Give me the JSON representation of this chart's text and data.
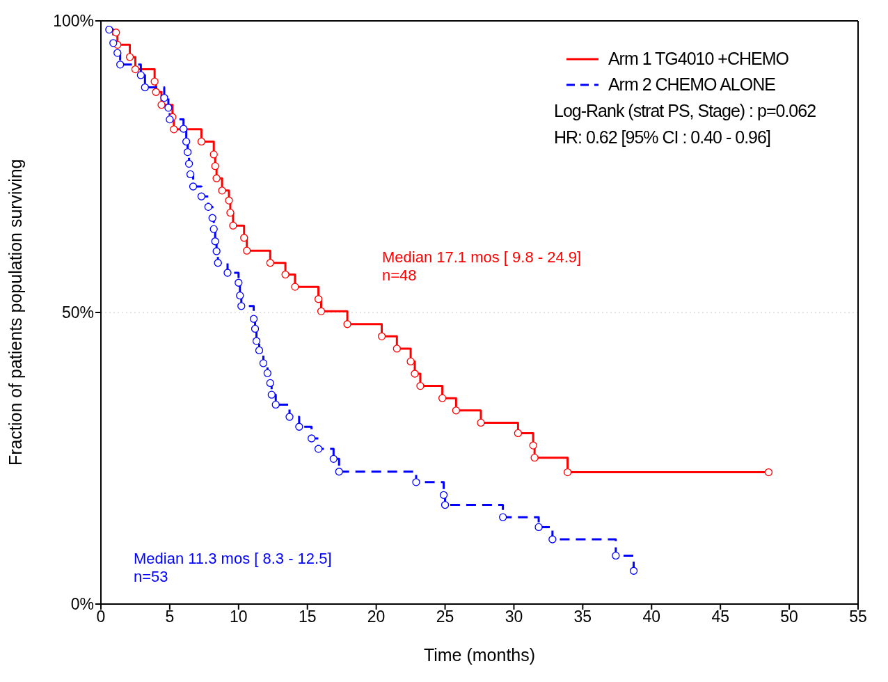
{
  "chart_data": {
    "type": "step",
    "xlabel": "Time (months)",
    "ylabel": "Fraction of patients population surviving",
    "xlim": [
      0,
      55
    ],
    "xticks": [
      0,
      5,
      10,
      15,
      20,
      25,
      30,
      35,
      40,
      45,
      50,
      55
    ],
    "ylim": [
      0,
      100
    ],
    "yticks": [
      {
        "value": 0,
        "label": "0%"
      },
      {
        "value": 50,
        "label": "50%"
      },
      {
        "value": 100,
        "label": "100%"
      }
    ],
    "legend": "top right",
    "marker": "circle",
    "ref_lines": [
      {
        "axis": "y",
        "value": 50,
        "label": null,
        "color": "#c8c8c8",
        "line_style": "dotted"
      }
    ],
    "series": [
      {
        "name": "Arm 1 TG4010 +CHEMO",
        "color": "#ff0000",
        "line_style": "solid",
        "x": [
          1.1,
          1.2,
          2.1,
          2.5,
          3.9,
          4.0,
          4.4,
          5.2,
          5.3,
          7.3,
          8.2,
          8.3,
          8.4,
          8.8,
          9.3,
          9.4,
          9.6,
          10.4,
          10.6,
          12.3,
          13.4,
          14.1,
          15.8,
          16.0,
          17.9,
          20.4,
          21.5,
          22.5,
          22.8,
          23.2,
          24.8,
          25.8,
          27.6,
          30.3,
          31.4,
          31.5,
          33.9,
          48.5
        ],
        "values": [
          98.0,
          95.9,
          93.8,
          91.7,
          89.6,
          87.8,
          85.6,
          83.5,
          81.4,
          79.3,
          77.1,
          75.1,
          73.0,
          70.9,
          69.2,
          67.1,
          64.9,
          62.8,
          60.6,
          58.5,
          56.5,
          54.4,
          52.3,
          50.2,
          48.0,
          45.9,
          43.8,
          41.6,
          39.5,
          37.4,
          35.3,
          33.2,
          31.1,
          29.3,
          27.2,
          25.1,
          22.6,
          22.6
        ]
      },
      {
        "name": "Arm 2 CHEMO ALONE",
        "color": "#0000ff",
        "line_style": "dashed",
        "x": [
          0.6,
          0.9,
          1.2,
          1.4,
          2.9,
          3.2,
          4.6,
          4.9,
          5.0,
          6.0,
          6.2,
          6.3,
          6.4,
          6.5,
          6.7,
          7.3,
          7.8,
          8.1,
          8.2,
          8.3,
          8.4,
          8.5,
          9.2,
          10.0,
          10.1,
          10.2,
          11.1,
          11.2,
          11.3,
          11.5,
          11.8,
          12.1,
          12.3,
          12.4,
          12.7,
          13.7,
          14.4,
          15.3,
          15.8,
          16.9,
          17.3,
          22.9,
          24.9,
          25.0,
          29.2,
          31.8,
          32.8,
          37.4,
          38.7
        ],
        "values": [
          98.5,
          96.2,
          94.5,
          92.5,
          90.7,
          88.6,
          86.8,
          85.1,
          83.1,
          81.5,
          79.3,
          77.5,
          75.5,
          73.7,
          71.6,
          69.9,
          68.1,
          66.2,
          64.3,
          62.2,
          60.5,
          58.5,
          56.8,
          55.1,
          52.9,
          51.1,
          48.9,
          47.2,
          45.1,
          43.5,
          41.3,
          39.6,
          37.9,
          35.9,
          34.2,
          32.1,
          30.4,
          28.4,
          26.6,
          24.9,
          22.7,
          20.9,
          18.7,
          17.0,
          14.9,
          13.2,
          11.1,
          8.3,
          5.7
        ]
      }
    ],
    "annotations": [
      "Log-Rank (strat PS, Stage) : p=0.062",
      "HR: 0.62 [95% CI : 0.40 - 0.96]",
      "Median 17.1 mos [ 9.8 - 24.9]\nn=48",
      "Median 11.3 mos [ 8.3 - 12.5]\nn=53"
    ]
  }
}
